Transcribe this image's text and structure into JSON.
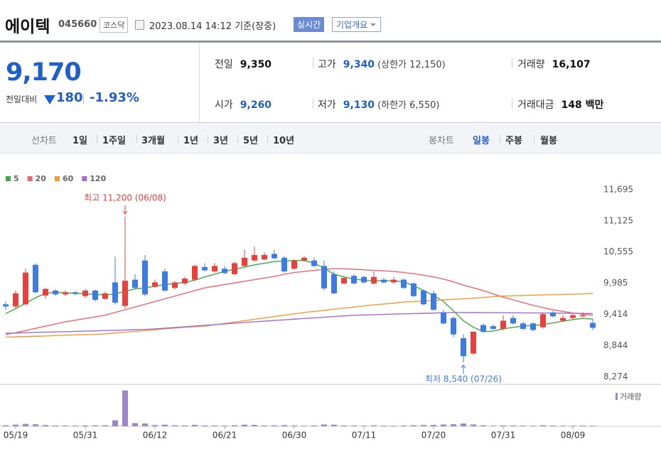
{
  "header": {
    "name": "에이텍",
    "code": "045660",
    "market": "코스닥",
    "timestamp": "2023.08.14 14:12 기준(장중)",
    "realtime": "실시간",
    "company_info": "기업개요"
  },
  "quote": {
    "price": "9,170",
    "change_label": "전일대비",
    "change": "180",
    "change_pct": "-1.93%",
    "rows": [
      [
        {
          "label": "전일",
          "value": "9,350"
        },
        {
          "label": "고가",
          "value": "9,340",
          "note": "(상한가 12,150)"
        },
        {
          "label": "거래량",
          "value": "16,107"
        }
      ],
      [
        {
          "label": "시가",
          "value": "9,260"
        },
        {
          "label": "저가",
          "value": "9,130",
          "note": "(하한가 6,550)"
        },
        {
          "label": "거래대금",
          "value": "148 백만"
        }
      ]
    ]
  },
  "tabs": {
    "line_label": "선차트",
    "line": [
      "1일",
      "1주일",
      "3개월",
      "1년",
      "3년",
      "5년",
      "10년"
    ],
    "candle_label": "봉차트",
    "candle": [
      "일봉",
      "주봉",
      "월봉"
    ]
  },
  "chart_data": {
    "type": "candlestick",
    "categories": [
      null,
      "05/19",
      null,
      null,
      null,
      null,
      null,
      null,
      "05/31",
      null,
      null,
      null,
      null,
      null,
      null,
      "06/12",
      null,
      null,
      null,
      null,
      null,
      null,
      "06/21",
      null,
      null,
      null,
      null,
      null,
      null,
      "06/30",
      null,
      null,
      null,
      null,
      null,
      null,
      "07/11",
      null,
      null,
      null,
      null,
      null,
      null,
      "07/20",
      null,
      null,
      null,
      null,
      null,
      null,
      "07/31",
      null,
      null,
      null,
      null,
      null,
      null,
      "08/09",
      null,
      null
    ],
    "open": [
      9600,
      9560,
      9600,
      10320,
      9760,
      9850,
      9780,
      9820,
      9750,
      9850,
      9700,
      10000,
      9570,
      10050,
      10400,
      9920,
      10200,
      9900,
      9980,
      10050,
      10280,
      10200,
      10250,
      10150,
      10300,
      10400,
      10420,
      10520,
      10450,
      10250,
      10400,
      10400,
      10300,
      10150,
      9980,
      10120,
      10100,
      9980,
      10050,
      10000,
      10050,
      9980,
      9850,
      9800,
      9450,
      9350,
      8980,
      8700,
      9220,
      9200,
      9150,
      9350,
      9250,
      9250,
      9180,
      9450,
      9300,
      9350,
      9380,
      9260
    ],
    "high": [
      9650,
      9850,
      10250,
      10350,
      9900,
      9880,
      9850,
      9840,
      9880,
      9870,
      9830,
      10470,
      11200,
      10150,
      10500,
      10050,
      10250,
      10020,
      10100,
      10320,
      10350,
      10350,
      10300,
      10380,
      10600,
      10650,
      10550,
      10600,
      10480,
      10420,
      10480,
      10450,
      10400,
      10200,
      10100,
      10150,
      10120,
      10200,
      10080,
      10100,
      10070,
      10000,
      9870,
      9850,
      9500,
      9380,
      9050,
      9100,
      9250,
      9230,
      9400,
      9400,
      9280,
      9270,
      9450,
      9480,
      9400,
      9420,
      9450,
      9340
    ],
    "low": [
      9500,
      9520,
      9580,
      9800,
      9700,
      9760,
      9750,
      9760,
      9720,
      9650,
      9680,
      9600,
      9520,
      9880,
      9750,
      9900,
      9830,
      9870,
      9950,
      10030,
      10200,
      10180,
      10150,
      10130,
      10280,
      10380,
      10400,
      10420,
      10180,
      10230,
      10380,
      10280,
      9850,
      9780,
      9960,
      9960,
      9980,
      9960,
      9980,
      9980,
      9880,
      9730,
      9580,
      9480,
      9230,
      9000,
      8540,
      8680,
      9080,
      9130,
      9130,
      9230,
      9130,
      9110,
      9160,
      9360,
      9280,
      9330,
      9360,
      9130
    ],
    "close": [
      9560,
      9800,
      10180,
      9820,
      9880,
      9780,
      9820,
      9790,
      9850,
      9680,
      9800,
      9630,
      10030,
      9900,
      9780,
      10000,
      9850,
      10000,
      10070,
      10300,
      10220,
      10300,
      10170,
      10350,
      10450,
      10500,
      10500,
      10440,
      10200,
      10400,
      10450,
      10300,
      9890,
      9800,
      10080,
      9980,
      10000,
      10100,
      10000,
      10050,
      9900,
      9750,
      9600,
      9500,
      9250,
      9050,
      8650,
      9100,
      9100,
      9150,
      9300,
      9250,
      9150,
      9130,
      9420,
      9380,
      9350,
      9400,
      9400,
      9170
    ],
    "up_color": "#e8403d",
    "down_color": "#3d7be0",
    "moving_averages": [
      {
        "name": "5",
        "color": "#3eaa3e",
        "values": [
          9430,
          9520,
          9620,
          9720,
          9800,
          9820,
          9810,
          9800,
          9790,
          9780,
          9770,
          9790,
          9840,
          9880,
          9900,
          9930,
          9960,
          9980,
          10000,
          10040,
          10100,
          10150,
          10200,
          10240,
          10280,
          10320,
          10350,
          10380,
          10390,
          10400,
          10400,
          10350,
          10260,
          10150,
          10100,
          10060,
          10040,
          10030,
          10030,
          10030,
          10010,
          9940,
          9850,
          9760,
          9650,
          9480,
          9300,
          9180,
          9100,
          9110,
          9150,
          9180,
          9200,
          9210,
          9230,
          9260,
          9290,
          9320,
          9340,
          9330
        ]
      },
      {
        "name": "20",
        "color": "#ef6470",
        "values": [
          9050,
          9080,
          9120,
          9160,
          9200,
          9240,
          9280,
          9310,
          9340,
          9370,
          9400,
          9450,
          9500,
          9550,
          9600,
          9650,
          9700,
          9750,
          9800,
          9850,
          9900,
          9930,
          9960,
          9990,
          10020,
          10050,
          10080,
          10110,
          10150,
          10180,
          10200,
          10220,
          10240,
          10250,
          10250,
          10240,
          10230,
          10220,
          10210,
          10200,
          10180,
          10160,
          10130,
          10100,
          10060,
          10010,
          9950,
          9900,
          9850,
          9790,
          9730,
          9680,
          9630,
          9580,
          9540,
          9500,
          9470,
          9440,
          9420,
          9400
        ]
      },
      {
        "name": "60",
        "color": "#f39a34",
        "values": [
          9000,
          9005,
          9010,
          9015,
          9020,
          9030,
          9035,
          9040,
          9045,
          9050,
          9060,
          9075,
          9090,
          9105,
          9120,
          9135,
          9150,
          9165,
          9180,
          9190,
          9200,
          9225,
          9250,
          9275,
          9300,
          9325,
          9350,
          9375,
          9400,
          9425,
          9450,
          9470,
          9490,
          9510,
          9530,
          9550,
          9570,
          9590,
          9605,
          9620,
          9640,
          9650,
          9660,
          9670,
          9680,
          9690,
          9700,
          9710,
          9725,
          9740,
          9750,
          9755,
          9760,
          9765,
          9770,
          9775,
          9780,
          9785,
          9790,
          9800
        ]
      },
      {
        "name": "120",
        "color": "#a36ad6",
        "values": [
          9070,
          9075,
          9080,
          9085,
          9090,
          9095,
          9100,
          9105,
          9110,
          9115,
          9120,
          9125,
          9130,
          9135,
          9140,
          9150,
          9163,
          9176,
          9189,
          9202,
          9215,
          9228,
          9241,
          9254,
          9267,
          9280,
          9292,
          9304,
          9316,
          9328,
          9340,
          9352,
          9364,
          9376,
          9388,
          9400,
          9405,
          9410,
          9415,
          9420,
          9425,
          9430,
          9435,
          9440,
          9445,
          9450,
          9449,
          9448,
          9447,
          9446,
          9445,
          9444,
          9443,
          9442,
          9441,
          9440,
          9438,
          9436,
          9433,
          9430
        ]
      }
    ],
    "volume": {
      "name": "거래량",
      "color": "#9c87c9",
      "ylim": [
        0,
        1000000
      ],
      "values": [
        25000,
        40000,
        60000,
        50000,
        30000,
        20000,
        18000,
        15000,
        20000,
        22000,
        25000,
        150000,
        900000,
        80000,
        70000,
        30000,
        40000,
        25000,
        20000,
        35000,
        20000,
        18000,
        16000,
        25000,
        40000,
        35000,
        20000,
        22000,
        30000,
        18000,
        15000,
        20000,
        45000,
        40000,
        20000,
        18000,
        15000,
        22000,
        16000,
        14000,
        18000,
        25000,
        30000,
        35000,
        45000,
        50000,
        70000,
        45000,
        25000,
        15000,
        20000,
        18000,
        15000,
        14000,
        25000,
        18000,
        15000,
        14000,
        16000,
        16107
      ]
    },
    "ylim": [
      8150,
      12200
    ],
    "yticks": [
      {
        "value": 8274,
        "label": "8,274"
      },
      {
        "value": 8844,
        "label": "8,844"
      },
      {
        "value": 9414,
        "label": "9,414"
      },
      {
        "value": 9985,
        "label": "9,985"
      },
      {
        "value": 10555,
        "label": "10,555"
      },
      {
        "value": 11125,
        "label": "11,125"
      },
      {
        "value": 11695,
        "label": "11,695"
      }
    ],
    "annotations": [
      {
        "text": "최고 11,200 (06/08)",
        "value": 11200,
        "color": "#e8403d"
      },
      {
        "text": "최저 8,540 (07/26)",
        "value": 8540,
        "color": "#3d7be0"
      }
    ]
  }
}
